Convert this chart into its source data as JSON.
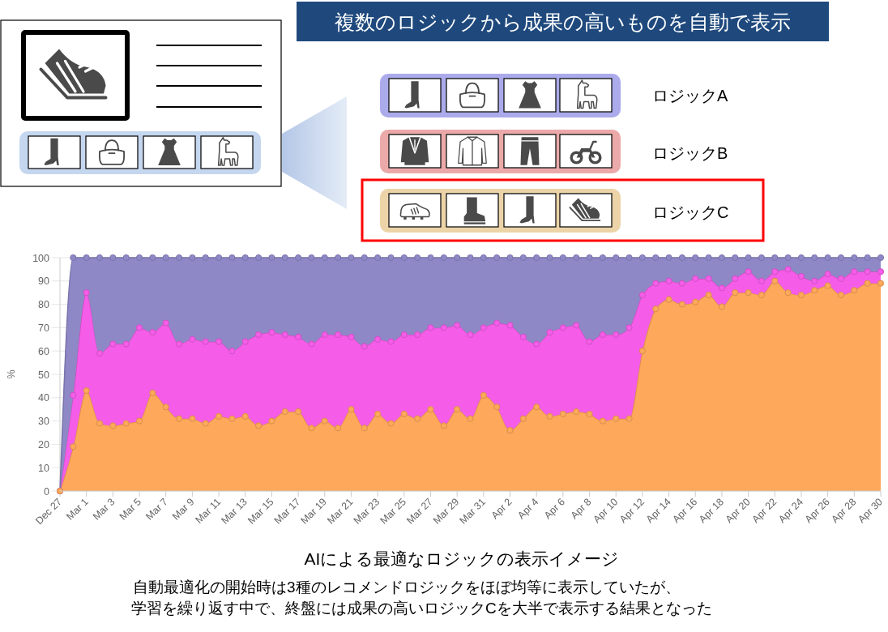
{
  "chart_data": {
    "type": "area",
    "stacked": true,
    "title": "複数のロジックから成果の高いものを自動で表示",
    "ylabel": "%",
    "categories": [
      "Dec 27",
      null,
      "Mar 1",
      null,
      "Mar 3",
      null,
      "Mar 5",
      null,
      "Mar 7",
      null,
      "Mar 9",
      null,
      "Mar 11",
      null,
      "Mar 13",
      null,
      "Mar 15",
      null,
      "Mar 17",
      null,
      "Mar 19",
      null,
      "Mar 21",
      null,
      "Mar 23",
      null,
      "Mar 25",
      null,
      "Mar 27",
      null,
      "Mar 29",
      null,
      "Mar 31",
      null,
      "Apr 2",
      null,
      "Apr 4",
      null,
      "Apr 6",
      null,
      "Apr 8",
      null,
      "Apr 10",
      null,
      "Apr 12",
      null,
      "Apr 14",
      null,
      "Apr 16",
      null,
      "Apr 18",
      null,
      "Apr 20",
      null,
      "Apr 22",
      null,
      "Apr 24",
      null,
      "Apr 26",
      null,
      "Apr 28",
      null,
      "Apr 30"
    ],
    "series": [
      {
        "color": "#fda85a",
        "values": [
          0,
          19,
          43,
          29,
          28,
          29,
          30,
          42,
          36,
          31,
          31,
          29,
          32,
          31,
          32,
          28,
          30,
          34,
          34,
          27,
          30,
          27,
          35,
          27,
          33,
          29,
          33,
          31,
          35,
          28,
          35,
          31,
          41,
          36,
          26,
          31,
          36,
          32,
          33,
          34,
          33,
          30,
          31,
          31,
          60,
          78,
          82,
          80,
          81,
          84,
          79,
          85,
          85,
          84,
          90,
          85,
          84,
          86,
          88,
          84,
          86,
          89,
          89
        ]
      },
      {
        "color": "#f55de8",
        "values": [
          0,
          22,
          42,
          30,
          35,
          34,
          40,
          26,
          36,
          32,
          34,
          35,
          32,
          29,
          32,
          39,
          38,
          33,
          32,
          36,
          37,
          40,
          31,
          35,
          32,
          35,
          34,
          36,
          35,
          42,
          36,
          36,
          29,
          36,
          45,
          35,
          27,
          36,
          37,
          37,
          31,
          37,
          36,
          39,
          24,
          11,
          8,
          9,
          10,
          7,
          8,
          6,
          9,
          6,
          4,
          10,
          8,
          4,
          5,
          7,
          8,
          5,
          5
        ]
      },
      {
        "color": "#8e88c7",
        "values": [
          0,
          59,
          15,
          41,
          37,
          37,
          30,
          32,
          28,
          37,
          35,
          36,
          36,
          40,
          36,
          33,
          32,
          33,
          34,
          37,
          33,
          33,
          34,
          38,
          35,
          36,
          33,
          33,
          30,
          30,
          29,
          33,
          30,
          28,
          29,
          34,
          37,
          32,
          30,
          29,
          36,
          33,
          33,
          30,
          16,
          11,
          10,
          11,
          9,
          9,
          13,
          9,
          6,
          10,
          6,
          5,
          8,
          10,
          7,
          9,
          6,
          6,
          6
        ]
      }
    ],
    "ylim": [
      0,
      100
    ],
    "yticks": [
      0,
      10,
      20,
      30,
      40,
      50,
      60,
      70,
      80,
      90,
      100
    ],
    "grid": "y",
    "marker": "circle",
    "annotations": [
      "ロジックA",
      "ロジックB",
      "ロジックC",
      "AIによる最適なロジックの表示イメージ",
      "自動最適化の開始時は3種のレコメンドロジックをほぼ均等に表示していたが、",
      "学習を繰り返す中で、終盤には成果の高いロジックCを大半で表示する結果となった"
    ]
  }
}
